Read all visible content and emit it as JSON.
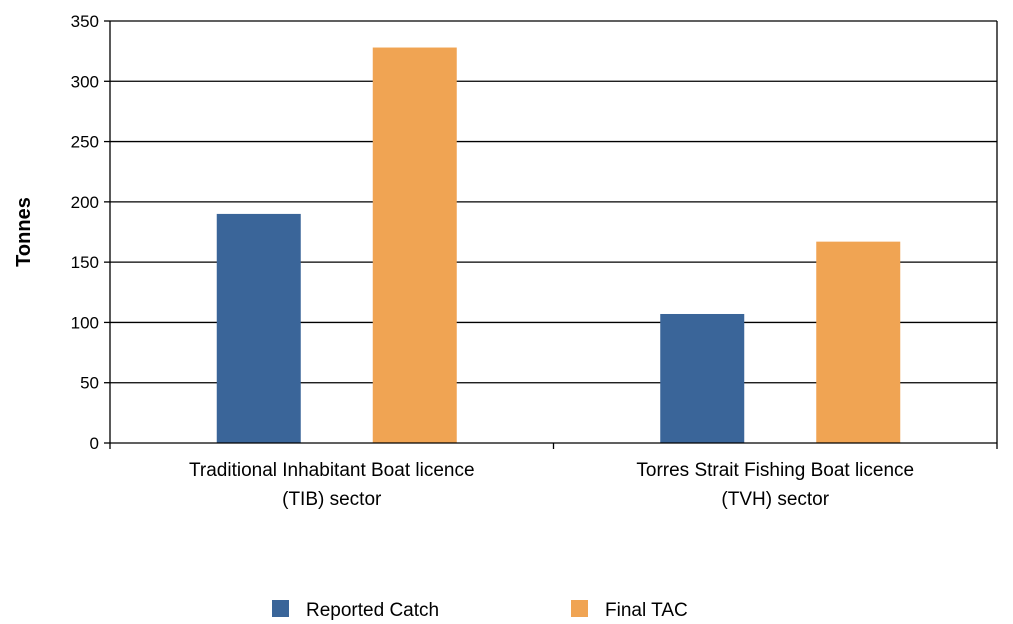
{
  "chart_data": {
    "type": "bar",
    "title": "",
    "xlabel": "",
    "ylabel": "Tonnes",
    "ylim": [
      0,
      350
    ],
    "yticks": [
      0,
      50,
      100,
      150,
      200,
      250,
      300,
      350
    ],
    "grid": "horizontal",
    "legend_position": "bottom",
    "categories": [
      [
        "Traditional Inhabitant Boat licence",
        "(TIB) sector"
      ],
      [
        "Torres Strait Fishing Boat licence",
        "(TVH) sector"
      ]
    ],
    "series": [
      {
        "name": "Reported Catch",
        "color": "#3a6599",
        "values": [
          190,
          107
        ]
      },
      {
        "name": "Final TAC",
        "color": "#f0a453",
        "values": [
          328,
          167
        ]
      }
    ]
  }
}
